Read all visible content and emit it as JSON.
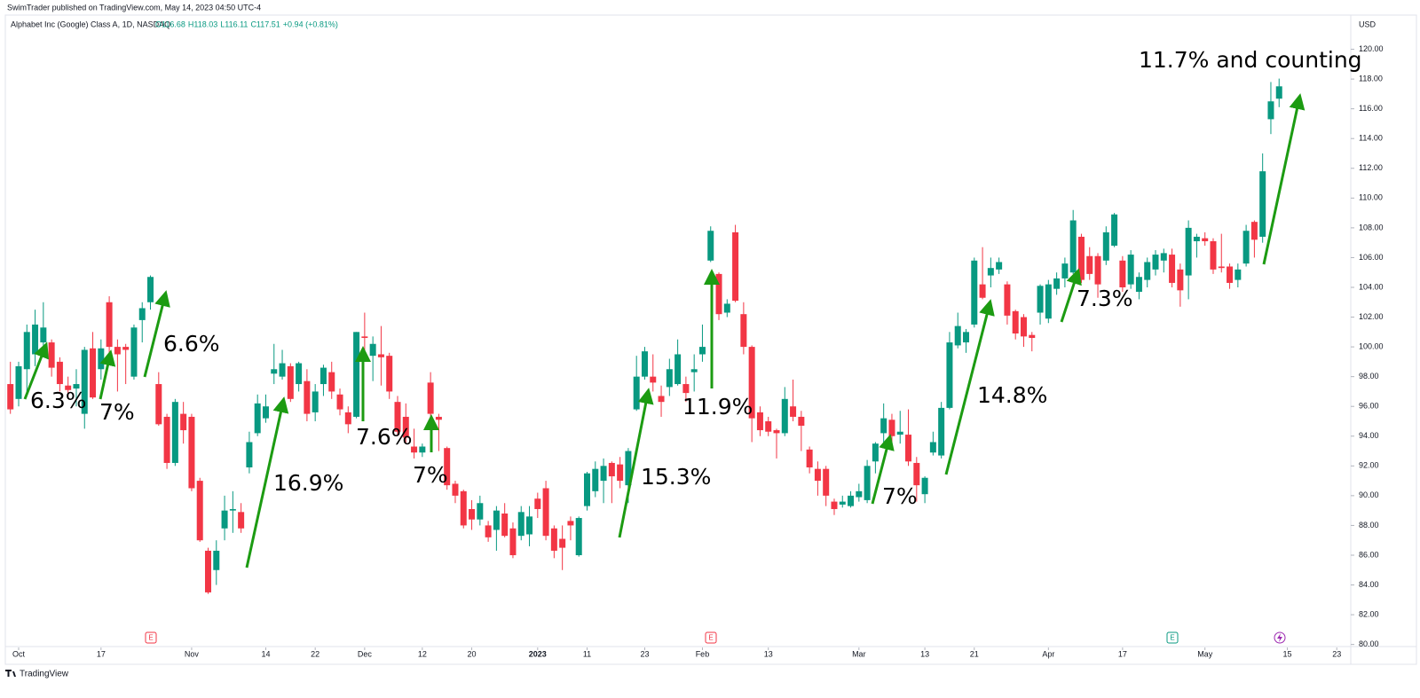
{
  "header": {
    "published": "SwimTrader published on TradingView.com, May 14, 2023 04:50 UTC-4",
    "symbol": "Alphabet Inc (Google) Class A, 1D, NASDAQ",
    "legend_values": [
      "O116.68",
      "H118.03",
      "L116.11",
      "C117.51",
      "+0.94 (+0.81%)"
    ]
  },
  "chart_data": {
    "type": "candlestick",
    "currency": "USD",
    "up_color": "#089981",
    "down_color": "#f23645",
    "open": [
      97.5,
      96.5,
      98.5,
      99.5,
      100.3,
      100.3,
      99,
      97.4,
      97.2,
      95.5,
      99.9,
      98.5,
      103,
      100,
      100,
      98,
      101.8,
      103,
      97.5,
      95.3,
      92.2,
      95.5,
      95.3,
      91,
      86.3,
      85,
      87.8,
      89,
      88.9,
      91.9,
      94.2,
      95.2,
      98.2,
      98,
      98.7,
      97.5,
      97.7,
      95.6,
      97.5,
      98.3,
      96.8,
      95.6,
      95.3,
      100.7,
      99.4,
      99.5,
      99.4,
      96.3,
      95.3,
      93.3,
      92.9,
      97.6,
      95.3,
      93.2,
      90.8,
      90.3,
      89.1,
      88.4,
      88,
      87.7,
      88.8,
      87.8,
      87.3,
      87.4,
      89.8,
      90.5,
      87.8,
      87.1,
      88.3,
      86,
      89.3,
      90.3,
      91,
      92.2,
      92.1,
      90.7,
      95.8,
      98,
      98,
      96.7,
      97.3,
      97.5,
      97.5,
      98.3,
      99.5,
      105.8,
      104.9,
      102.3,
      107.7,
      102.2,
      100,
      95.6,
      95,
      94.4,
      94.2,
      96,
      95.3,
      93.1,
      91.8,
      91.8,
      89.6,
      89.4,
      89.3,
      89.9,
      89.7,
      92.3,
      94.2,
      95.1,
      94.1,
      94.1,
      92.2,
      90.1,
      92.9,
      92.7,
      95.9,
      100.1,
      100.3,
      101.5,
      104.2,
      104.8,
      105.2,
      104.2,
      102.4,
      102,
      100.8,
      102.3,
      101.9,
      103.9,
      104.6,
      105,
      107.4,
      106.1,
      106.1,
      105.8,
      106.8,
      105.8,
      104.2,
      103.7,
      104.5,
      105.2,
      105.8,
      106.2,
      105.2,
      104.8,
      107.1,
      107.3,
      107.1,
      105.4,
      105.4,
      104.5,
      105.6,
      108.4,
      107.4,
      115.3,
      116.68
    ],
    "high": [
      99,
      99,
      101.5,
      102.5,
      103,
      100.5,
      99.3,
      98,
      98.5,
      100,
      101,
      100.5,
      103.4,
      100.5,
      100.2,
      101.5,
      103,
      104.8,
      98.3,
      95.5,
      96.5,
      96.3,
      95.5,
      91.2,
      86.5,
      87,
      90,
      90.3,
      89.5,
      94.3,
      96.8,
      96.8,
      100.2,
      99.8,
      98.9,
      99,
      98.5,
      97.5,
      98.8,
      99,
      97.2,
      96,
      101,
      102.3,
      100.7,
      101.4,
      99.6,
      96.7,
      96.2,
      94.5,
      93.5,
      98.3,
      95.5,
      93.3,
      91,
      90.4,
      89.7,
      90,
      88.3,
      89.3,
      89.5,
      88.2,
      89.3,
      89.3,
      90.2,
      91,
      88,
      88,
      88.6,
      88.6,
      91.6,
      92.3,
      92.5,
      92.3,
      92.6,
      93.2,
      99.4,
      100,
      99.5,
      97.4,
      99.2,
      100.5,
      98,
      99.5,
      101.5,
      108.1,
      105,
      103.2,
      108.2,
      103,
      100.1,
      96,
      95.3,
      94.5,
      97.3,
      97.8,
      95.7,
      93.3,
      92.3,
      92,
      89.8,
      90,
      90.3,
      90.8,
      92.4,
      93.6,
      96.2,
      95.5,
      95.7,
      95.8,
      92.6,
      91.3,
      94.3,
      96.3,
      101,
      102.3,
      101.2,
      106,
      106.7,
      106,
      106,
      104.4,
      102.5,
      102.2,
      101,
      104.2,
      104.5,
      105,
      106,
      109.2,
      107.6,
      106.7,
      106.3,
      108.1,
      109,
      106.1,
      106.5,
      105,
      106,
      106.5,
      106.6,
      106.6,
      105.6,
      108.5,
      107.6,
      107.7,
      107.3,
      107.6,
      105.6,
      105.6,
      108.2,
      108.5,
      113,
      117.8,
      118.03
    ],
    "low": [
      95.5,
      96,
      97,
      98.7,
      99.5,
      98,
      97,
      96.5,
      96,
      94.5,
      96.5,
      97.8,
      99,
      97,
      97.5,
      97.8,
      100.3,
      102.5,
      94.7,
      91.8,
      92,
      93.5,
      90.3,
      86.9,
      83.4,
      84,
      87,
      87.5,
      87.5,
      91.5,
      94,
      94.9,
      97.5,
      97.8,
      96.3,
      97,
      95,
      95,
      96.7,
      96.5,
      95.4,
      94.2,
      95.2,
      99.5,
      97.7,
      97.4,
      96.5,
      94,
      93.5,
      92.5,
      92.6,
      95.3,
      93,
      90.4,
      89.5,
      87.8,
      87.7,
      88,
      86.9,
      86.3,
      87.2,
      85.8,
      87,
      86.6,
      88.5,
      87,
      85.8,
      85,
      87,
      85.9,
      89,
      89.9,
      89.5,
      89.5,
      90.5,
      89.5,
      95.7,
      97.8,
      97,
      95.3,
      96.7,
      97.4,
      96.3,
      97,
      99,
      105.7,
      101.8,
      102,
      103,
      99.5,
      93.6,
      94,
      94,
      92.5,
      94,
      95,
      93,
      91.5,
      90,
      89.3,
      88.7,
      89.2,
      89.2,
      89.6,
      89.5,
      91.5,
      93.5,
      93.5,
      93.5,
      92,
      89.6,
      89.5,
      92.7,
      92.5,
      95.8,
      99.9,
      99.6,
      101.3,
      103.2,
      104,
      104.9,
      101.5,
      100.5,
      100,
      99.7,
      101.5,
      101.6,
      103.5,
      104,
      104.9,
      104.3,
      104.5,
      103.3,
      105.5,
      106.7,
      103.7,
      103.9,
      103.2,
      104,
      104.8,
      105,
      104,
      102.7,
      103.2,
      106,
      106.8,
      104.9,
      105,
      103.9,
      104,
      105.4,
      106,
      107,
      114.3,
      116.11
    ],
    "close": [
      95.8,
      98.7,
      101,
      101.5,
      101.3,
      98.6,
      97.5,
      97.1,
      97.5,
      99.8,
      96.6,
      99.9,
      100,
      99.5,
      99.8,
      101.3,
      102.6,
      104.7,
      94.8,
      92.2,
      96.3,
      94.4,
      90.5,
      87,
      83.5,
      86.3,
      89,
      89.1,
      87.8,
      93.6,
      96.2,
      96,
      98.5,
      98.9,
      96.5,
      98.9,
      95.5,
      97,
      98.6,
      97,
      95.8,
      94.8,
      101,
      100.6,
      100.2,
      99.3,
      97,
      94.3,
      93.9,
      92.9,
      93.3,
      95.5,
      95.1,
      90.7,
      90,
      88,
      88.4,
      89.5,
      87.2,
      89,
      87.3,
      86,
      88.9,
      88.6,
      89.1,
      87.3,
      86.3,
      86.5,
      88,
      88.5,
      91.5,
      91.8,
      92,
      91.3,
      91,
      93,
      98,
      99.7,
      97.6,
      96.3,
      98.5,
      99.5,
      96.9,
      98.5,
      100,
      107.8,
      102.2,
      102.9,
      103.1,
      100,
      95.2,
      94.4,
      94.3,
      94.2,
      96.5,
      95.3,
      94.7,
      91.9,
      91,
      90,
      89.1,
      89.6,
      90,
      90.3,
      92,
      93.5,
      95.2,
      94,
      94.3,
      92.3,
      90.7,
      91.2,
      93.6,
      95.9,
      100.3,
      101.4,
      101,
      105.8,
      103.3,
      105.3,
      105.7,
      102.1,
      100.9,
      100.7,
      100.6,
      104.1,
      104.2,
      104.6,
      105.6,
      108.5,
      104.5,
      104.9,
      104.2,
      107.7,
      108.9,
      104,
      106.2,
      104.7,
      105.7,
      106.2,
      106.3,
      104.3,
      103.8,
      108,
      107.4,
      107.1,
      105.2,
      105.3,
      104.3,
      105.2,
      107.8,
      107.2,
      111.8,
      116.5,
      117.51
    ],
    "xlim": [
      -0.4,
      162.7
    ],
    "xticks": [
      {
        "value": 1,
        "label": "Oct"
      },
      {
        "value": 11,
        "label": "17"
      },
      {
        "value": 22,
        "label": "Nov"
      },
      {
        "value": 31,
        "label": "14"
      },
      {
        "value": 37,
        "label": "22"
      },
      {
        "value": 43,
        "label": "Dec"
      },
      {
        "value": 50,
        "label": "12"
      },
      {
        "value": 56,
        "label": "20"
      },
      {
        "value": 64,
        "label": "2023"
      },
      {
        "value": 70,
        "label": "11"
      },
      {
        "value": 77,
        "label": "23"
      },
      {
        "value": 84,
        "label": "Feb"
      },
      {
        "value": 92,
        "label": "13"
      },
      {
        "value": 103,
        "label": "Mar"
      },
      {
        "value": 111,
        "label": "13"
      },
      {
        "value": 117,
        "label": "21"
      },
      {
        "value": 126,
        "label": "Apr"
      },
      {
        "value": 135,
        "label": "17"
      },
      {
        "value": 145,
        "label": "May"
      },
      {
        "value": 155,
        "label": "15"
      },
      {
        "value": 161,
        "label": "23"
      }
    ],
    "ylim": [
      79.8,
      122
    ],
    "yticks": [
      {
        "value": 80,
        "label": "80.00"
      },
      {
        "value": 82,
        "label": "82.00"
      },
      {
        "value": 84,
        "label": "84.00"
      },
      {
        "value": 86,
        "label": "86.00"
      },
      {
        "value": 88,
        "label": "88.00"
      },
      {
        "value": 90,
        "label": "90.00"
      },
      {
        "value": 92,
        "label": "92.00"
      },
      {
        "value": 94,
        "label": "94.00"
      },
      {
        "value": 96,
        "label": "96.00"
      },
      {
        "value": 98,
        "label": "98.00"
      },
      {
        "value": 100,
        "label": "100.00"
      },
      {
        "value": 102,
        "label": "102.00"
      },
      {
        "value": 104,
        "label": "104.00"
      },
      {
        "value": 106,
        "label": "106.00"
      },
      {
        "value": 108,
        "label": "108.00"
      },
      {
        "value": 110,
        "label": "110.00"
      },
      {
        "value": 112,
        "label": "112.00"
      },
      {
        "value": 114,
        "label": "114.00"
      },
      {
        "value": 116,
        "label": "116.00"
      },
      {
        "value": 118,
        "label": "118.00"
      },
      {
        "value": 120,
        "label": "120.00"
      }
    ],
    "events": [
      "E",
      "E",
      "E"
    ],
    "annotations": [
      "6.3%",
      "7%",
      "6.6%",
      "16.9%",
      "7.6%",
      "7%",
      "15.3%",
      "11.9%",
      "7%",
      "14.8%",
      "7.3%",
      "11.7% and counting"
    ]
  },
  "footer": {
    "brand": "TradingView"
  }
}
